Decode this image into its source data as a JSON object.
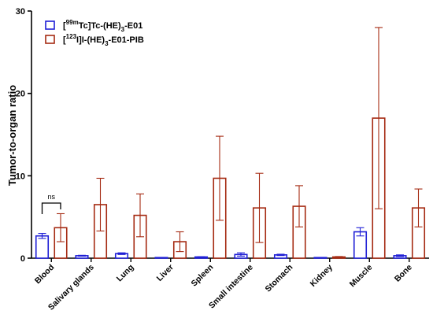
{
  "chart_data": {
    "type": "bar",
    "ylabel": "Tumor-to-organ ratio",
    "ylim": [
      0,
      30
    ],
    "yticks": [
      0,
      10,
      20,
      30
    ],
    "categories": [
      "Blood",
      "Salivary glands",
      "Lung",
      "Liver",
      "Spleen",
      "Small intestine",
      "Stomach",
      "Kidney",
      "Muscle",
      "Bone"
    ],
    "series": [
      {
        "name_prefix": "[",
        "name_sup": "99m",
        "name_main": "Tc]Tc-(HE)",
        "name_sub": "3",
        "name_suffix": "-E01",
        "color": "#1f1fd6",
        "values": [
          2.7,
          0.3,
          0.55,
          0.05,
          0.15,
          0.45,
          0.4,
          0.0,
          3.2,
          0.3
        ],
        "errors": [
          0.3,
          0.05,
          0.1,
          0.02,
          0.03,
          0.2,
          0.08,
          0.0,
          0.5,
          0.1
        ]
      },
      {
        "name_prefix": "[",
        "name_sup": "123",
        "name_main": "I]I-(HE)",
        "name_sub": "3",
        "name_suffix": "-E01-PIB",
        "color": "#a52a12",
        "values": [
          3.7,
          6.5,
          5.2,
          2.0,
          9.7,
          6.1,
          6.3,
          0.15,
          17.0,
          6.1
        ],
        "errors": [
          1.7,
          3.2,
          2.6,
          1.2,
          5.1,
          4.2,
          2.5,
          0.05,
          11.0,
          2.3
        ]
      }
    ],
    "annotations": [
      {
        "text": "ns",
        "category": "Blood"
      }
    ]
  }
}
